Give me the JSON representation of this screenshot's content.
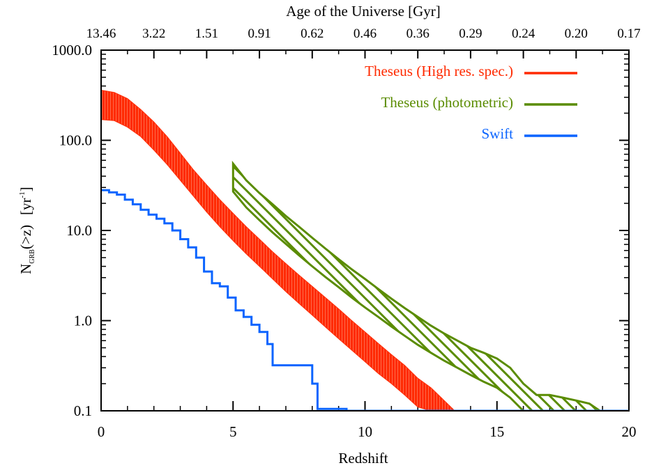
{
  "chart_data": {
    "type": "line",
    "xlabel": "Redshift",
    "ylabel_main": "N",
    "ylabel_sub": "GRB",
    "ylabel_rest": "(>z)",
    "yunit_base": "[yr",
    "yunit_sup": "-1",
    "yunit_close": "]",
    "top_axis_label": "Age of the Universe [Gyr]",
    "xlim": [
      0,
      20
    ],
    "ylim": [
      0.1,
      1000
    ],
    "yscale": "log",
    "x_ticks": [
      0,
      5,
      10,
      15,
      20
    ],
    "x_tick_labels": [
      "0",
      "5",
      "10",
      "15",
      "20"
    ],
    "y_ticks": [
      0.1,
      1,
      10,
      100,
      1000
    ],
    "y_tick_labels": [
      "0.1",
      "1.0",
      "10.0",
      "100.0",
      "1000.0"
    ],
    "top_ticks": [
      0,
      2,
      4,
      6,
      8,
      10,
      12,
      14,
      16,
      18,
      20
    ],
    "top_tick_labels": [
      "13.46",
      "3.22",
      "1.51",
      "0.91",
      "0.62",
      "0.46",
      "0.36",
      "0.29",
      "0.24",
      "0.20",
      "0.17"
    ],
    "legend": [
      {
        "label": "Theseus (High res. spec.)",
        "color": "#ff2a00"
      },
      {
        "label": "Theseus (photometric)",
        "color": "#5a8c00"
      },
      {
        "label": "Swift",
        "color": "#0a64ff"
      }
    ],
    "series": [
      {
        "name": "Theseus (High res. spec.)",
        "color": "#ff2a00",
        "style": "band-filled",
        "x": [
          0,
          0.5,
          1,
          1.5,
          2,
          2.5,
          3,
          3.5,
          4,
          4.5,
          5,
          5.5,
          6,
          6.5,
          7,
          7.5,
          8,
          8.5,
          9,
          9.5,
          10,
          10.5,
          11,
          11.5,
          12,
          12.5,
          13,
          13.4
        ],
        "upper": [
          360,
          340,
          290,
          220,
          160,
          110,
          72,
          47,
          32,
          22,
          15.5,
          11,
          8,
          5.8,
          4.3,
          3.2,
          2.4,
          1.8,
          1.35,
          1.0,
          0.75,
          0.56,
          0.42,
          0.32,
          0.23,
          0.18,
          0.13,
          0.1
        ],
        "lower": [
          170,
          165,
          140,
          110,
          78,
          54,
          36,
          24,
          16,
          11,
          7.7,
          5.5,
          4.0,
          2.9,
          2.1,
          1.55,
          1.15,
          0.85,
          0.63,
          0.47,
          0.35,
          0.26,
          0.2,
          0.15,
          0.11,
          0.1,
          0.1,
          0.1
        ]
      },
      {
        "name": "Theseus (photometric)",
        "color": "#5a8c00",
        "style": "band-hatched",
        "x": [
          5,
          5.5,
          6,
          6.5,
          7,
          7.5,
          8,
          8.5,
          9,
          9.5,
          10,
          10.5,
          11,
          11.5,
          12,
          12.5,
          13,
          13.5,
          14,
          14.5,
          15,
          15.5,
          16,
          16.5,
          17,
          17.5,
          18,
          18.5,
          18.9
        ],
        "upper": [
          55,
          36,
          26,
          19.5,
          14.5,
          11,
          8.3,
          6.3,
          4.8,
          3.7,
          2.9,
          2.25,
          1.75,
          1.38,
          1.1,
          0.88,
          0.72,
          0.6,
          0.5,
          0.44,
          0.38,
          0.3,
          0.2,
          0.15,
          0.15,
          0.14,
          0.13,
          0.12,
          0.1
        ],
        "lower": [
          27,
          18,
          13,
          9.5,
          7.1,
          5.3,
          4.0,
          3.05,
          2.35,
          1.8,
          1.4,
          1.1,
          0.86,
          0.68,
          0.54,
          0.44,
          0.36,
          0.3,
          0.25,
          0.21,
          0.18,
          0.14,
          0.1,
          0.1,
          0.1,
          0.1,
          0.1,
          0.1,
          0.1
        ]
      },
      {
        "name": "Swift",
        "color": "#0a64ff",
        "style": "step",
        "x": [
          0,
          0.3,
          0.6,
          0.9,
          1.2,
          1.5,
          1.8,
          2.1,
          2.4,
          2.7,
          3.0,
          3.3,
          3.6,
          3.9,
          4.2,
          4.5,
          4.8,
          5.1,
          5.4,
          5.7,
          6.0,
          6.3,
          6.5,
          8.0,
          8.2,
          9.3,
          20
        ],
        "y": [
          28,
          26.5,
          25,
          22,
          19.5,
          17,
          15,
          13.5,
          12,
          10,
          8,
          6.5,
          5,
          3.5,
          2.6,
          2.4,
          1.8,
          1.3,
          1.1,
          0.9,
          0.75,
          0.55,
          0.32,
          0.2,
          0.105,
          0.1,
          0.1
        ]
      }
    ]
  }
}
